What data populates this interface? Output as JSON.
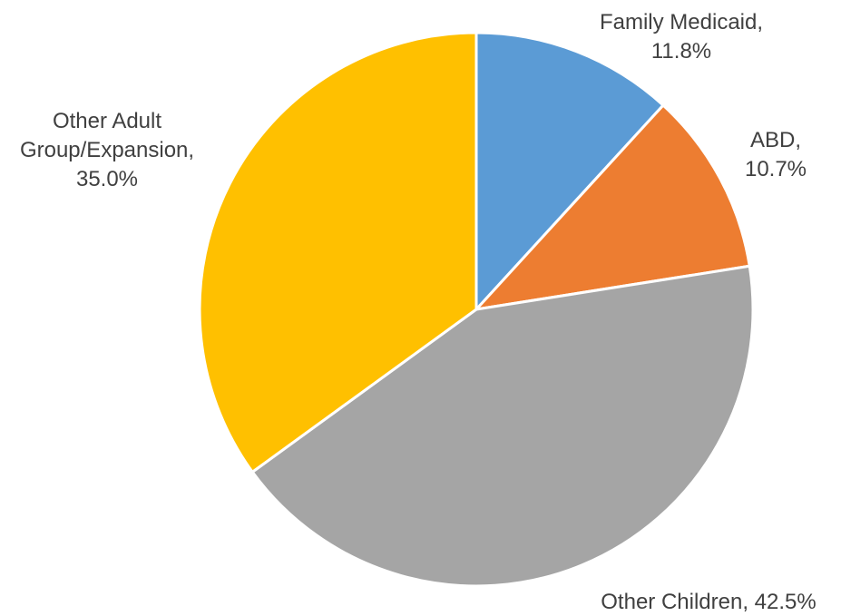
{
  "chart_data": {
    "type": "pie",
    "title": "",
    "start_angle_deg": 0,
    "direction": "clockwise",
    "slices": [
      {
        "name": "Family Medicaid",
        "value": 11.8,
        "label_lines": [
          "Family Medicaid,",
          "11.8%"
        ],
        "color": "#5B9BD5"
      },
      {
        "name": "ABD",
        "value": 10.7,
        "label_lines": [
          "ABD,",
          "10.7%"
        ],
        "color": "#ED7D31"
      },
      {
        "name": "Other Children",
        "value": 42.5,
        "label_lines": [
          "Other Children, 42.5%"
        ],
        "color": "#A5A5A5"
      },
      {
        "name": "Other Adult Group/Expansion",
        "value": 35.0,
        "label_lines": [
          "Other Adult",
          "Group/Expansion,",
          "35.0%"
        ],
        "color": "#FFC000"
      }
    ]
  }
}
